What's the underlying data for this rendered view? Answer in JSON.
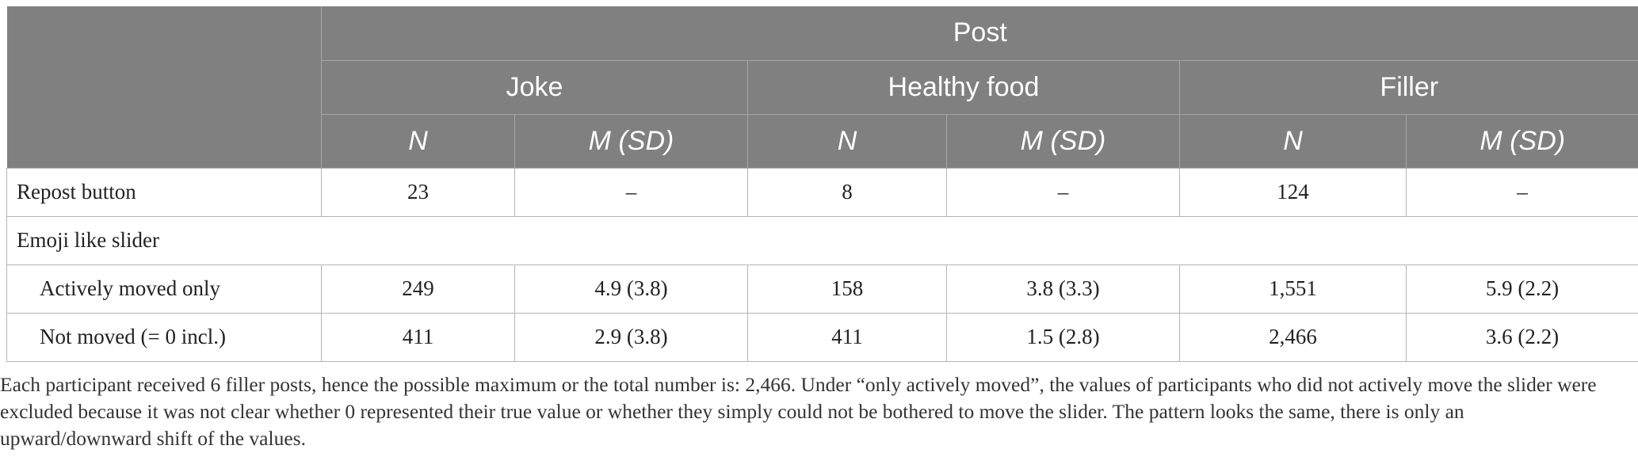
{
  "table": {
    "header": {
      "group_label": "Post",
      "categories": [
        "Joke",
        "Healthy food",
        "Filler"
      ],
      "n_label": "N",
      "msd_label": "M (SD)"
    },
    "rows": [
      {
        "label": "Repost button",
        "cells": [
          "23",
          "–",
          "8",
          "–",
          "124",
          "–"
        ]
      },
      {
        "label": "Emoji like slider"
      },
      {
        "label": "Actively moved only",
        "cells": [
          "249",
          "4.9 (3.8)",
          "158",
          "3.8 (3.3)",
          "1,551",
          "5.9 (2.2)"
        ]
      },
      {
        "label": "Not moved (= 0 incl.)",
        "cells": [
          "411",
          "2.9 (3.8)",
          "411",
          "1.5 (2.8)",
          "2,466",
          "3.6 (2.2)"
        ]
      }
    ]
  },
  "note": "Each participant received 6 filler posts, hence the possible maximum or the total number is: 2,466. Under “only actively moved”, the values of participants who did not actively move the slider were excluded because it was not clear whether 0 represented their true value or whether they simply could not be bothered to move the slider. The pattern looks the same, there is only an upward/downward shift of the values."
}
